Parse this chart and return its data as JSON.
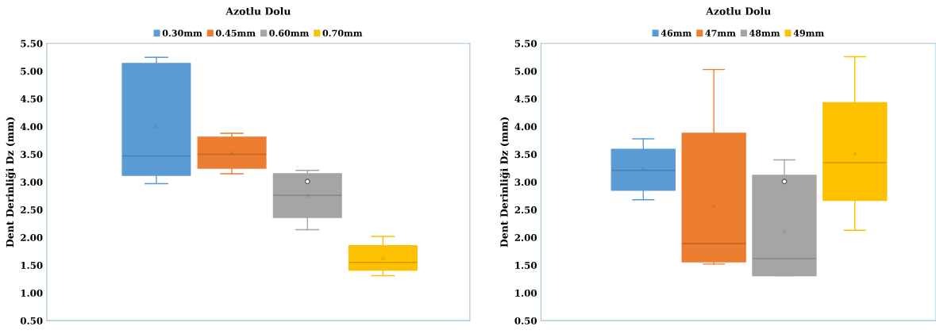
{
  "chart_data": [
    {
      "type": "box",
      "title": "Azotlu Dolu",
      "ylabel": "Dent Derinliği Dz (mm)",
      "categories": [
        null
      ],
      "legend": "top",
      "grid": false,
      "tick_labels": "y",
      "ylim": [
        0.5,
        5.5
      ],
      "yticks": [
        {
          "value": 0.5,
          "label": "0.50"
        },
        {
          "value": 1.0,
          "label": "1.00"
        },
        {
          "value": 1.5,
          "label": "1.50"
        },
        {
          "value": 2.0,
          "label": "2.00"
        },
        {
          "value": 2.5,
          "label": "2.50"
        },
        {
          "value": 3.0,
          "label": "3.00"
        },
        {
          "value": 3.5,
          "label": "3.50"
        },
        {
          "value": 4.0,
          "label": "4.00"
        },
        {
          "value": 4.5,
          "label": "4.50"
        },
        {
          "value": 5.0,
          "label": "5.00"
        },
        {
          "value": 5.5,
          "label": "5.50"
        }
      ],
      "series": [
        {
          "name": "0.30mm",
          "color": "#5b9bd5",
          "boxes": [
            {
              "low": 2.97,
              "q1": 3.12,
              "median": 3.47,
              "q3": 5.14,
              "high": 5.25,
              "mean": 4.0
            }
          ]
        },
        {
          "name": "0.45mm",
          "color": "#ed7d31",
          "boxes": [
            {
              "low": 3.15,
              "q1": 3.25,
              "median": 3.5,
              "q3": 3.81,
              "high": 3.88,
              "mean": 3.52
            }
          ]
        },
        {
          "name": "0.60mm",
          "color": "#a5a5a5",
          "boxes": [
            {
              "low": 2.14,
              "q1": 2.36,
              "median": 2.76,
              "q3": 3.15,
              "high": 3.21,
              "mean": 2.75,
              "outliers": [
                3.01
              ]
            }
          ]
        },
        {
          "name": "0.70mm",
          "color": "#ffc000",
          "boxes": [
            {
              "low": 1.31,
              "q1": 1.41,
              "median": 1.55,
              "q3": 1.85,
              "high": 2.02,
              "mean": 1.62
            }
          ]
        }
      ]
    },
    {
      "type": "box",
      "title": "Azotlu Dolu",
      "ylabel": "Dent Derinliği Dz (mm)",
      "categories": [
        null
      ],
      "legend": "top",
      "grid": false,
      "tick_labels": "y",
      "ylim": [
        0.5,
        5.5
      ],
      "yticks": [
        {
          "value": 0.5,
          "label": "0.50"
        },
        {
          "value": 1.0,
          "label": "1.00"
        },
        {
          "value": 1.5,
          "label": "1.50"
        },
        {
          "value": 2.0,
          "label": "2.00"
        },
        {
          "value": 2.5,
          "label": "2.50"
        },
        {
          "value": 3.0,
          "label": "3.00"
        },
        {
          "value": 3.5,
          "label": "3.50"
        },
        {
          "value": 4.0,
          "label": "4.00"
        },
        {
          "value": 4.5,
          "label": "4.50"
        },
        {
          "value": 5.0,
          "label": "5.00"
        },
        {
          "value": 5.5,
          "label": "5.50"
        }
      ],
      "series": [
        {
          "name": "46mm",
          "color": "#5b9bd5",
          "boxes": [
            {
              "low": 2.68,
              "q1": 2.85,
              "median": 3.21,
              "q3": 3.59,
              "high": 3.78,
              "mean": 3.24
            }
          ]
        },
        {
          "name": "47mm",
          "color": "#ed7d31",
          "boxes": [
            {
              "low": 1.52,
              "q1": 1.56,
              "median": 1.89,
              "q3": 3.88,
              "high": 5.03,
              "mean": 2.56
            }
          ]
        },
        {
          "name": "48mm",
          "color": "#a5a5a5",
          "boxes": [
            {
              "low": 1.31,
              "q1": 1.31,
              "median": 1.62,
              "q3": 3.12,
              "high": 3.4,
              "mean": 2.1,
              "outliers": [
                3.01
              ]
            }
          ]
        },
        {
          "name": "49mm",
          "color": "#ffc000",
          "boxes": [
            {
              "low": 2.13,
              "q1": 2.67,
              "median": 3.35,
              "q3": 4.43,
              "high": 5.26,
              "mean": 3.51
            }
          ]
        }
      ]
    }
  ]
}
